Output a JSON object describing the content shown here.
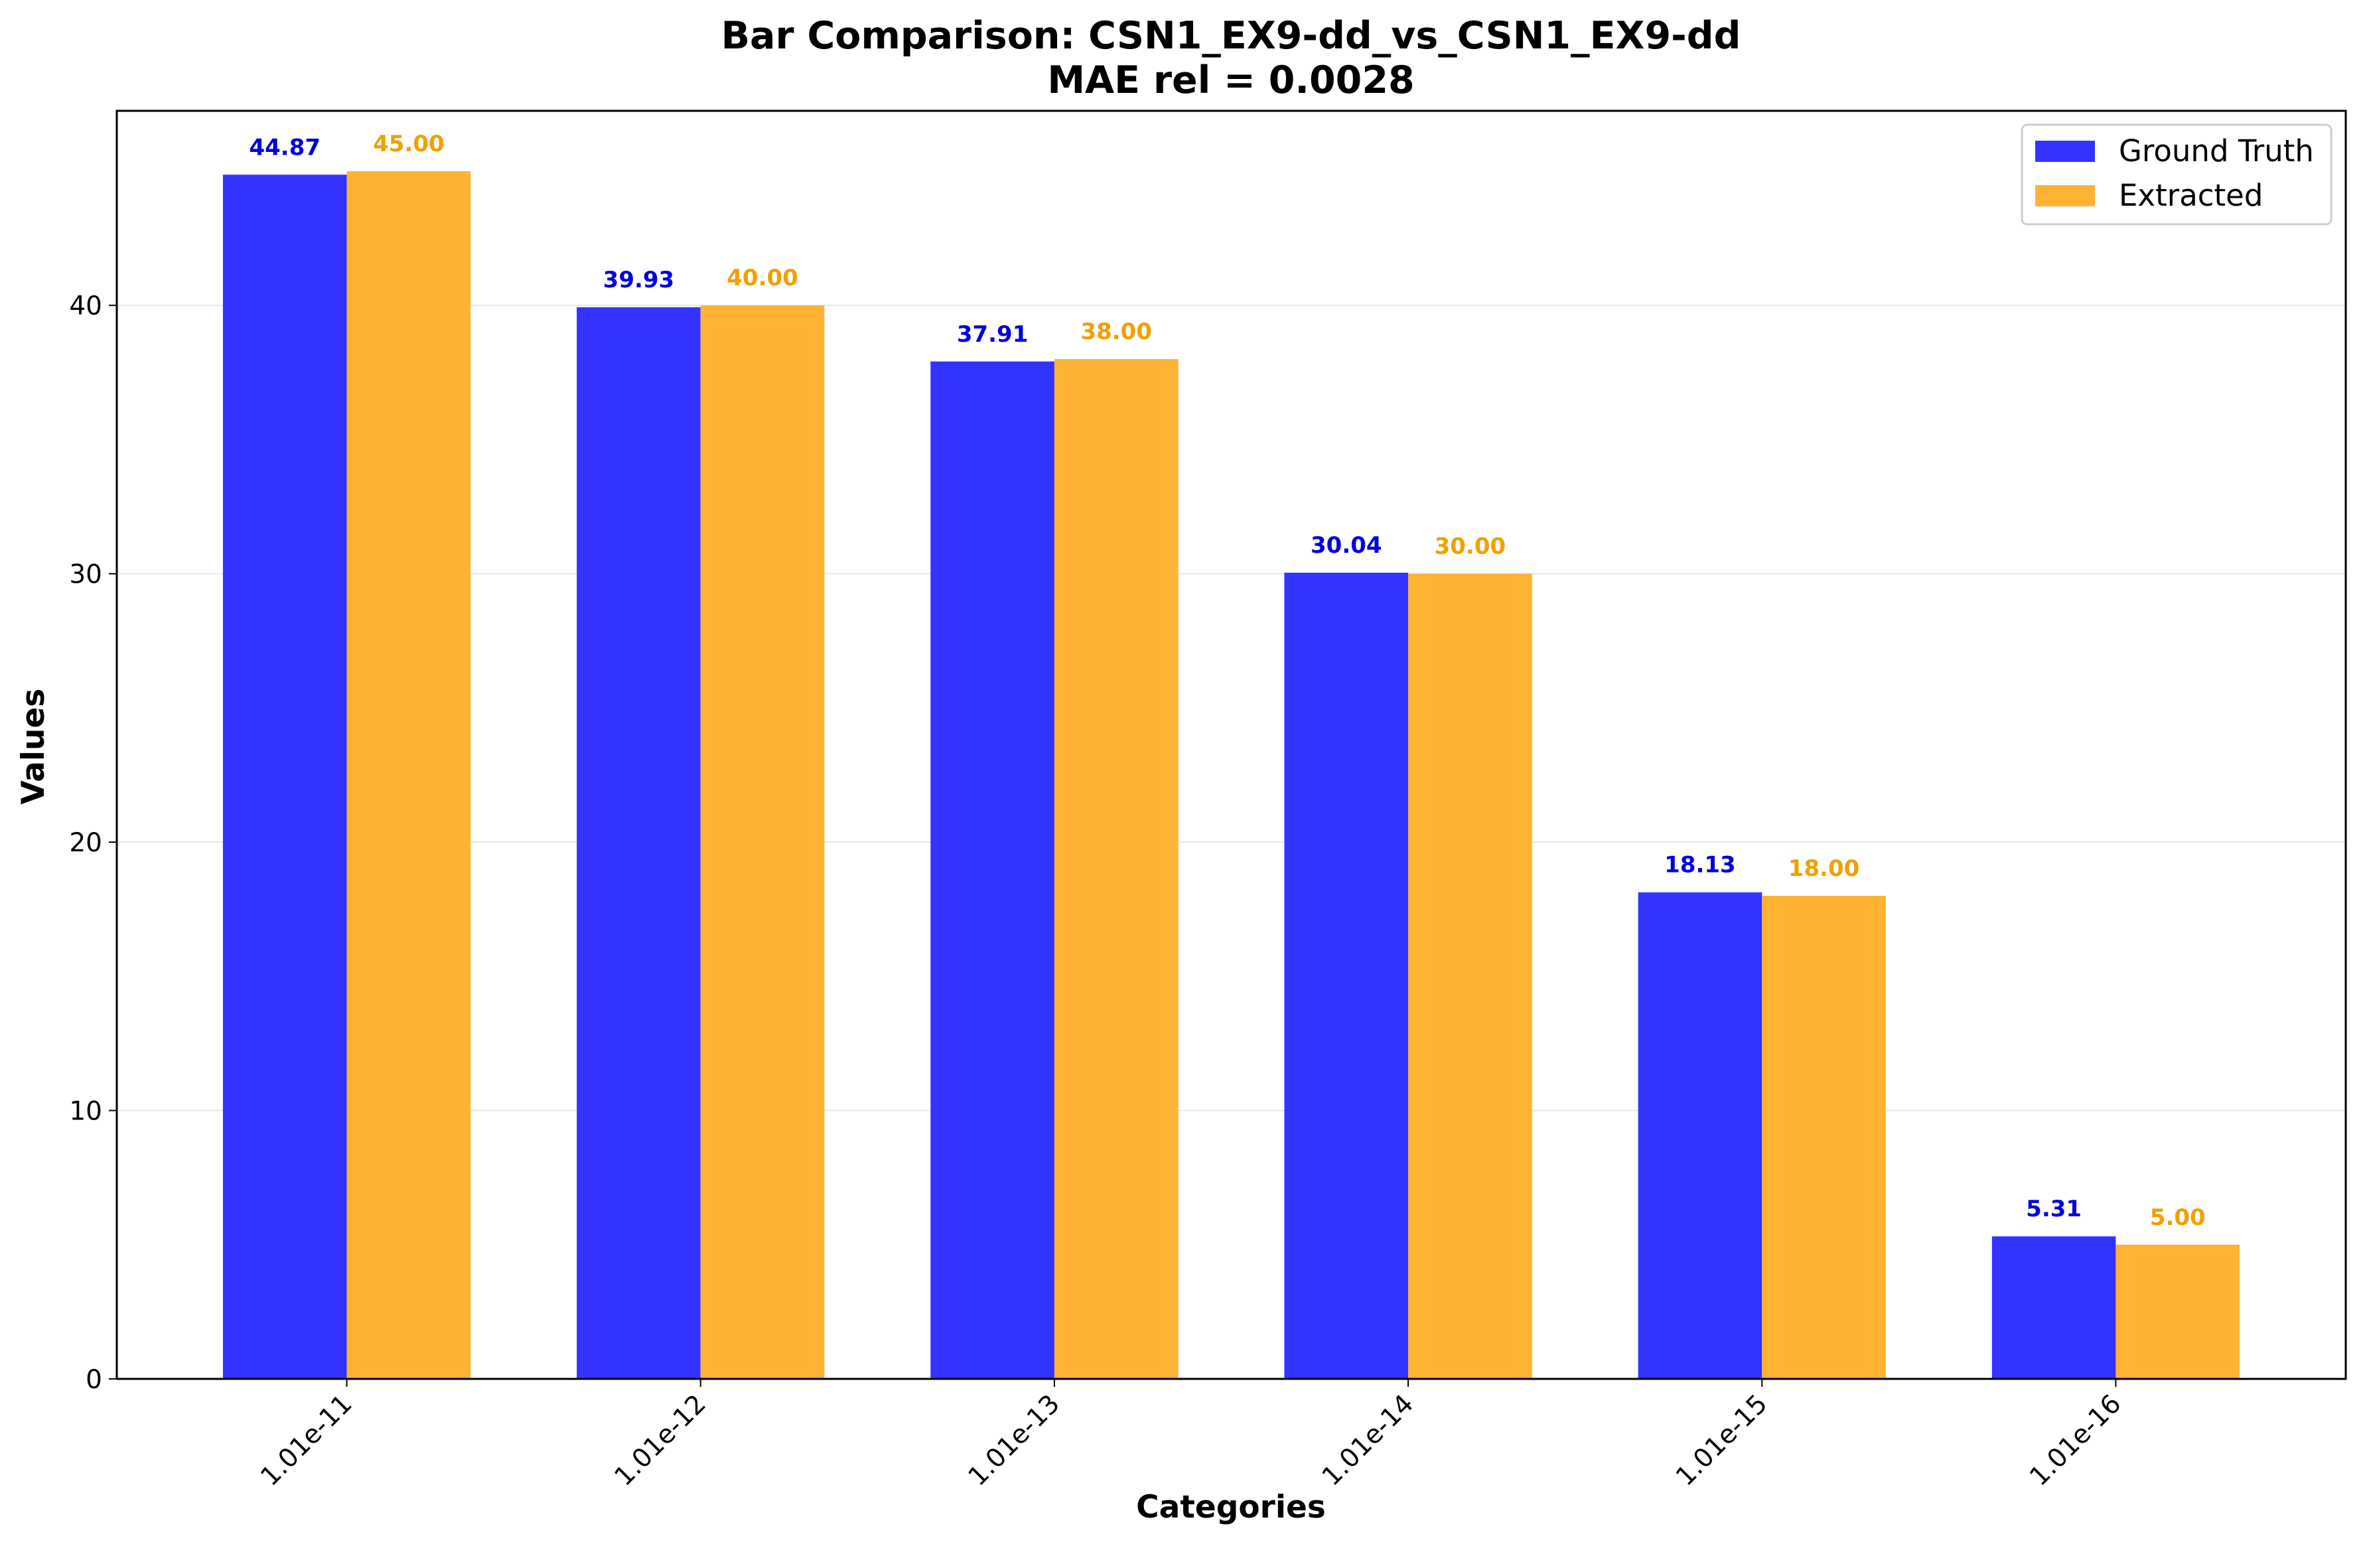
{
  "chart_data": {
    "type": "bar",
    "title": "Bar Comparison: CSN1_EX9-dd_vs_CSN1_EX9-dd",
    "subtitle": "MAE rel = 0.0028",
    "xlabel": "Categories",
    "ylabel": "Values",
    "categories": [
      "1.01e-11",
      "1.01e-12",
      "1.01e-13",
      "1.01e-14",
      "1.01e-15",
      "1.01e-16"
    ],
    "series": [
      {
        "name": "Ground Truth",
        "color": "#3333ff",
        "label_color": "#0000dd",
        "values": [
          44.87,
          39.93,
          37.91,
          30.04,
          18.13,
          5.31
        ],
        "labels": [
          "44.87",
          "39.93",
          "37.91",
          "30.04",
          "18.13",
          "5.31"
        ]
      },
      {
        "name": "Extracted",
        "color": "#ffb333",
        "label_color": "#f0a000",
        "values": [
          45.0,
          40.0,
          38.0,
          30.0,
          18.0,
          5.0
        ],
        "labels": [
          "45.00",
          "40.00",
          "38.00",
          "30.00",
          "18.00",
          "5.00"
        ]
      }
    ],
    "ylim": [
      0,
      47.25
    ],
    "yticks": [
      0,
      10,
      20,
      30,
      40
    ],
    "ytick_labels": [
      "0",
      "10",
      "20",
      "30",
      "40"
    ],
    "grid": "y",
    "legend": "top-right"
  }
}
